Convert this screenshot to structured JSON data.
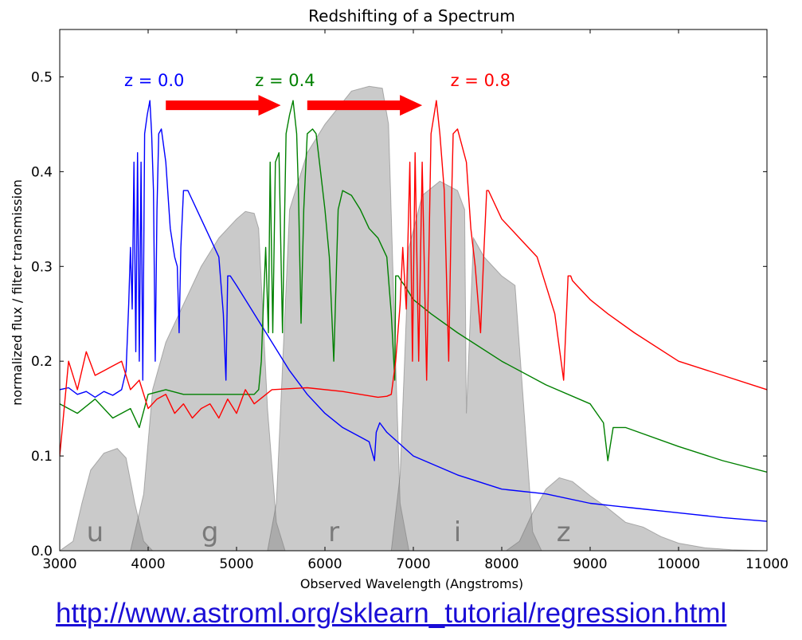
{
  "chart_data": {
    "type": "line",
    "title": "Redshifting of a Spectrum",
    "xlabel": "Observed Wavelength (Angstroms)",
    "ylabel": "normalized flux / filter transmission",
    "xlim": [
      3000,
      11000
    ],
    "ylim": [
      0,
      0.55
    ],
    "grid": false,
    "x_ticks": [
      3000,
      4000,
      5000,
      6000,
      7000,
      8000,
      9000,
      10000,
      11000
    ],
    "y_ticks": [
      0.0,
      0.1,
      0.2,
      0.3,
      0.4,
      0.5
    ],
    "y_tick_labels": [
      "0.0",
      "0.1",
      "0.2",
      "0.3",
      "0.4",
      "0.5"
    ],
    "filters": [
      {
        "name": "u",
        "label_x": 3400,
        "points": [
          [
            3000,
            0
          ],
          [
            3150,
            0.01
          ],
          [
            3250,
            0.05
          ],
          [
            3350,
            0.085
          ],
          [
            3500,
            0.103
          ],
          [
            3650,
            0.108
          ],
          [
            3750,
            0.098
          ],
          [
            3850,
            0.05
          ],
          [
            3950,
            0.01
          ],
          [
            4050,
            0
          ]
        ]
      },
      {
        "name": "g",
        "label_x": 4700,
        "points": [
          [
            3800,
            0
          ],
          [
            3950,
            0.06
          ],
          [
            4050,
            0.17
          ],
          [
            4200,
            0.22
          ],
          [
            4400,
            0.26
          ],
          [
            4600,
            0.3
          ],
          [
            4800,
            0.33
          ],
          [
            5000,
            0.35
          ],
          [
            5100,
            0.358
          ],
          [
            5200,
            0.356
          ],
          [
            5250,
            0.34
          ],
          [
            5350,
            0.15
          ],
          [
            5450,
            0.03
          ],
          [
            5550,
            0
          ]
        ]
      },
      {
        "name": "r",
        "label_x": 6100,
        "points": [
          [
            5350,
            0
          ],
          [
            5450,
            0.05
          ],
          [
            5600,
            0.36
          ],
          [
            5800,
            0.42
          ],
          [
            6000,
            0.45
          ],
          [
            6300,
            0.485
          ],
          [
            6500,
            0.49
          ],
          [
            6650,
            0.488
          ],
          [
            6720,
            0.45
          ],
          [
            6800,
            0.2
          ],
          [
            6850,
            0.05
          ],
          [
            6950,
            0
          ]
        ]
      },
      {
        "name": "i",
        "label_x": 7500,
        "points": [
          [
            6750,
            0
          ],
          [
            6850,
            0.08
          ],
          [
            6950,
            0.32
          ],
          [
            7100,
            0.375
          ],
          [
            7300,
            0.39
          ],
          [
            7500,
            0.38
          ],
          [
            7580,
            0.36
          ],
          [
            7600,
            0.145
          ],
          [
            7680,
            0.33
          ],
          [
            7800,
            0.31
          ],
          [
            8000,
            0.29
          ],
          [
            8150,
            0.28
          ],
          [
            8250,
            0.15
          ],
          [
            8350,
            0.02
          ],
          [
            8450,
            0
          ]
        ]
      },
      {
        "name": "z",
        "label_x": 8700,
        "points": [
          [
            8050,
            0
          ],
          [
            8200,
            0.01
          ],
          [
            8350,
            0.04
          ],
          [
            8500,
            0.065
          ],
          [
            8650,
            0.077
          ],
          [
            8800,
            0.073
          ],
          [
            9000,
            0.058
          ],
          [
            9200,
            0.045
          ],
          [
            9400,
            0.03
          ],
          [
            9600,
            0.025
          ],
          [
            9800,
            0.015
          ],
          [
            10000,
            0.008
          ],
          [
            10300,
            0.003
          ],
          [
            10600,
            0.001
          ],
          [
            11000,
            0
          ]
        ]
      }
    ],
    "series": [
      {
        "name": "z = 0.0",
        "color": "#0000ff",
        "z": 0.0,
        "label_x": 3730,
        "x": [
          3000,
          3100,
          3200,
          3300,
          3400,
          3500,
          3600,
          3700,
          3750,
          3780,
          3800,
          3820,
          3840,
          3860,
          3880,
          3900,
          3920,
          3940,
          3960,
          3990,
          4020,
          4040,
          4060,
          4080,
          4100,
          4120,
          4150,
          4200,
          4250,
          4300,
          4330,
          4350,
          4370,
          4400,
          4450,
          4500,
          4600,
          4700,
          4800,
          4850,
          4880,
          4900,
          4930,
          5000,
          5200,
          5400,
          5600,
          5800,
          6000,
          6200,
          6400,
          6500,
          6560,
          6580,
          6620,
          6700,
          7000,
          7500,
          8000,
          8500,
          9000,
          9500,
          10000,
          10500,
          11000
        ],
        "y": [
          0.17,
          0.172,
          0.165,
          0.168,
          0.162,
          0.168,
          0.164,
          0.17,
          0.19,
          0.26,
          0.32,
          0.255,
          0.41,
          0.21,
          0.42,
          0.2,
          0.41,
          0.18,
          0.44,
          0.46,
          0.475,
          0.44,
          0.38,
          0.2,
          0.36,
          0.44,
          0.445,
          0.41,
          0.34,
          0.31,
          0.3,
          0.23,
          0.32,
          0.38,
          0.38,
          0.37,
          0.35,
          0.33,
          0.31,
          0.25,
          0.18,
          0.29,
          0.29,
          0.28,
          0.25,
          0.22,
          0.19,
          0.165,
          0.145,
          0.13,
          0.12,
          0.115,
          0.095,
          0.125,
          0.135,
          0.125,
          0.1,
          0.08,
          0.065,
          0.06,
          0.05,
          0.045,
          0.04,
          0.035,
          0.031
        ]
      },
      {
        "name": "z = 0.4",
        "color": "#008000",
        "z": 0.4,
        "label_x": 5210,
        "x": [
          3000,
          3200,
          3400,
          3600,
          3800,
          3900,
          4000,
          4200,
          4400,
          4600,
          4800,
          5000,
          5200,
          5250,
          5280,
          5300,
          5330,
          5360,
          5380,
          5410,
          5440,
          5480,
          5520,
          5560,
          5600,
          5640,
          5680,
          5700,
          5730,
          5760,
          5800,
          5860,
          5900,
          5950,
          6000,
          6050,
          6100,
          6150,
          6200,
          6300,
          6400,
          6500,
          6600,
          6700,
          6750,
          6790,
          6800,
          6830,
          6860,
          6900,
          7000,
          7200,
          7500,
          8000,
          8500,
          9000,
          9150,
          9200,
          9260,
          9400,
          10000,
          10500,
          11000
        ],
        "y": [
          0.155,
          0.145,
          0.16,
          0.14,
          0.15,
          0.13,
          0.165,
          0.17,
          0.165,
          0.165,
          0.165,
          0.165,
          0.165,
          0.17,
          0.2,
          0.25,
          0.32,
          0.23,
          0.41,
          0.23,
          0.41,
          0.42,
          0.23,
          0.44,
          0.46,
          0.475,
          0.44,
          0.38,
          0.24,
          0.36,
          0.44,
          0.445,
          0.44,
          0.4,
          0.36,
          0.31,
          0.2,
          0.36,
          0.38,
          0.375,
          0.36,
          0.34,
          0.33,
          0.31,
          0.25,
          0.18,
          0.29,
          0.29,
          0.285,
          0.28,
          0.265,
          0.25,
          0.23,
          0.2,
          0.175,
          0.155,
          0.135,
          0.095,
          0.13,
          0.13,
          0.11,
          0.095,
          0.083
        ]
      },
      {
        "name": "z = 0.8",
        "color": "#ff0000",
        "z": 0.8,
        "label_x": 7420,
        "x": [
          3000,
          3100,
          3200,
          3300,
          3400,
          3500,
          3600,
          3700,
          3800,
          3900,
          4000,
          4100,
          4200,
          4300,
          4400,
          4500,
          4600,
          4700,
          4800,
          4900,
          5000,
          5100,
          5200,
          5400,
          5800,
          6200,
          6600,
          6700,
          6750,
          6800,
          6850,
          6880,
          6920,
          6960,
          6990,
          7020,
          7060,
          7100,
          7150,
          7200,
          7260,
          7300,
          7350,
          7400,
          7430,
          7450,
          7500,
          7600,
          7650,
          7700,
          7760,
          7800,
          7830,
          7850,
          7900,
          8000,
          8200,
          8400,
          8600,
          8700,
          8750,
          8780,
          8800,
          8850,
          9000,
          9200,
          9500,
          10000,
          10500,
          11000
        ],
        "y": [
          0.1,
          0.2,
          0.17,
          0.21,
          0.185,
          0.19,
          0.195,
          0.2,
          0.17,
          0.18,
          0.15,
          0.16,
          0.165,
          0.145,
          0.155,
          0.14,
          0.15,
          0.155,
          0.14,
          0.16,
          0.145,
          0.17,
          0.155,
          0.17,
          0.172,
          0.168,
          0.162,
          0.163,
          0.165,
          0.2,
          0.26,
          0.32,
          0.255,
          0.41,
          0.2,
          0.42,
          0.2,
          0.41,
          0.18,
          0.44,
          0.475,
          0.44,
          0.38,
          0.2,
          0.36,
          0.44,
          0.445,
          0.41,
          0.34,
          0.3,
          0.23,
          0.32,
          0.38,
          0.38,
          0.37,
          0.35,
          0.33,
          0.31,
          0.25,
          0.18,
          0.29,
          0.29,
          0.285,
          0.28,
          0.265,
          0.25,
          0.23,
          0.2,
          0.185,
          0.17
        ]
      }
    ],
    "arrows": [
      {
        "x_from": 4200,
        "x_to": 5500,
        "y": 0.47
      },
      {
        "x_from": 5800,
        "x_to": 7100,
        "y": 0.47
      }
    ]
  },
  "source_link": "http://www.astroml.org/sklearn_tutorial/regression.html"
}
